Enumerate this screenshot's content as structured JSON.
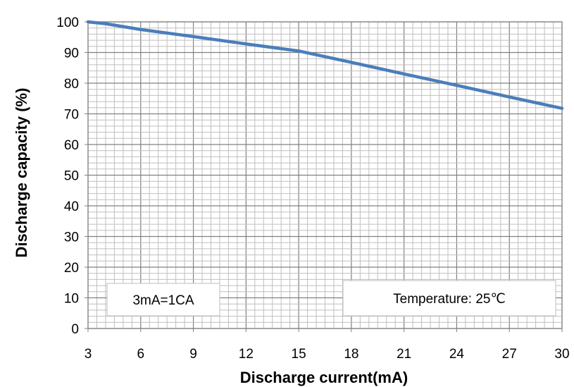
{
  "chart_data": {
    "type": "line",
    "title": "",
    "xlabel": "Discharge current(mA)",
    "ylabel": "Discharge capacity (%)",
    "xlim": [
      3,
      30
    ],
    "ylim": [
      0,
      100
    ],
    "x_ticks": [
      "3",
      "6",
      "9",
      "12",
      "15",
      "18",
      "21",
      "24",
      "27",
      "30"
    ],
    "y_ticks": [
      "0",
      "10",
      "20",
      "30",
      "40",
      "50",
      "60",
      "70",
      "80",
      "90",
      "100"
    ],
    "grid": true,
    "series": [
      {
        "color": "#4a7ebb",
        "x": [
          3,
          4,
          6,
          9,
          12,
          15,
          18,
          21,
          24,
          27,
          30
        ],
        "y": [
          100,
          99.4,
          97.5,
          95.2,
          92.8,
          90.5,
          86.8,
          83.0,
          79.3,
          75.5,
          71.8
        ]
      }
    ],
    "annotations": [
      {
        "id": "rate",
        "text": "3mA=1CA"
      },
      {
        "id": "temp",
        "text": "Temperature: 25℃"
      }
    ]
  }
}
